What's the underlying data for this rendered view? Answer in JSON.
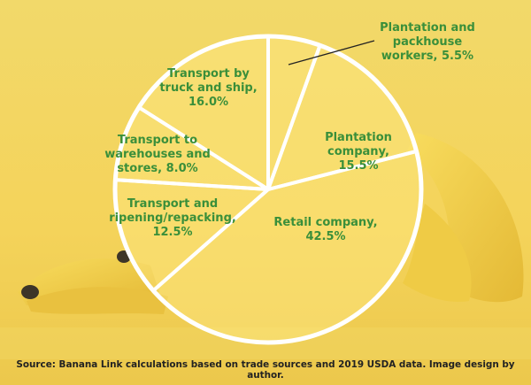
{
  "chart_data": {
    "type": "pie",
    "title": "",
    "start_angle_deg": 0,
    "direction": "clockwise",
    "slices": [
      {
        "label": "Plantation and packhouse workers",
        "value": 5.5,
        "text": "Plantation and\npackhouse\nworkers, 5.5%"
      },
      {
        "label": "Plantation company",
        "value": 15.5,
        "text": "Plantation company,\n15.5%"
      },
      {
        "label": "Retail company",
        "value": 42.5,
        "text": "Retail company,\n42.5%"
      },
      {
        "label": "Transport and ripening/repacking",
        "value": 12.5,
        "text": "Transport and\nripening/repacking,\n12.5%"
      },
      {
        "label": "Transport to warehouses and stores",
        "value": 8.0,
        "text": "Transport to\nwarehouses and\nstores, 8.0%"
      },
      {
        "label": "Transport by truck and ship",
        "value": 16.0,
        "text": "Transport by\ntruck and ship,\n16.0%"
      }
    ],
    "colors": {
      "label_text": "#3a8f3a",
      "divider": "#ffffff",
      "background": "#f3d35c",
      "banana": "#f6d24a"
    }
  },
  "source_text": "Source: Banana Link calculations based on trade sources and 2019 USDA data. Image design by author."
}
